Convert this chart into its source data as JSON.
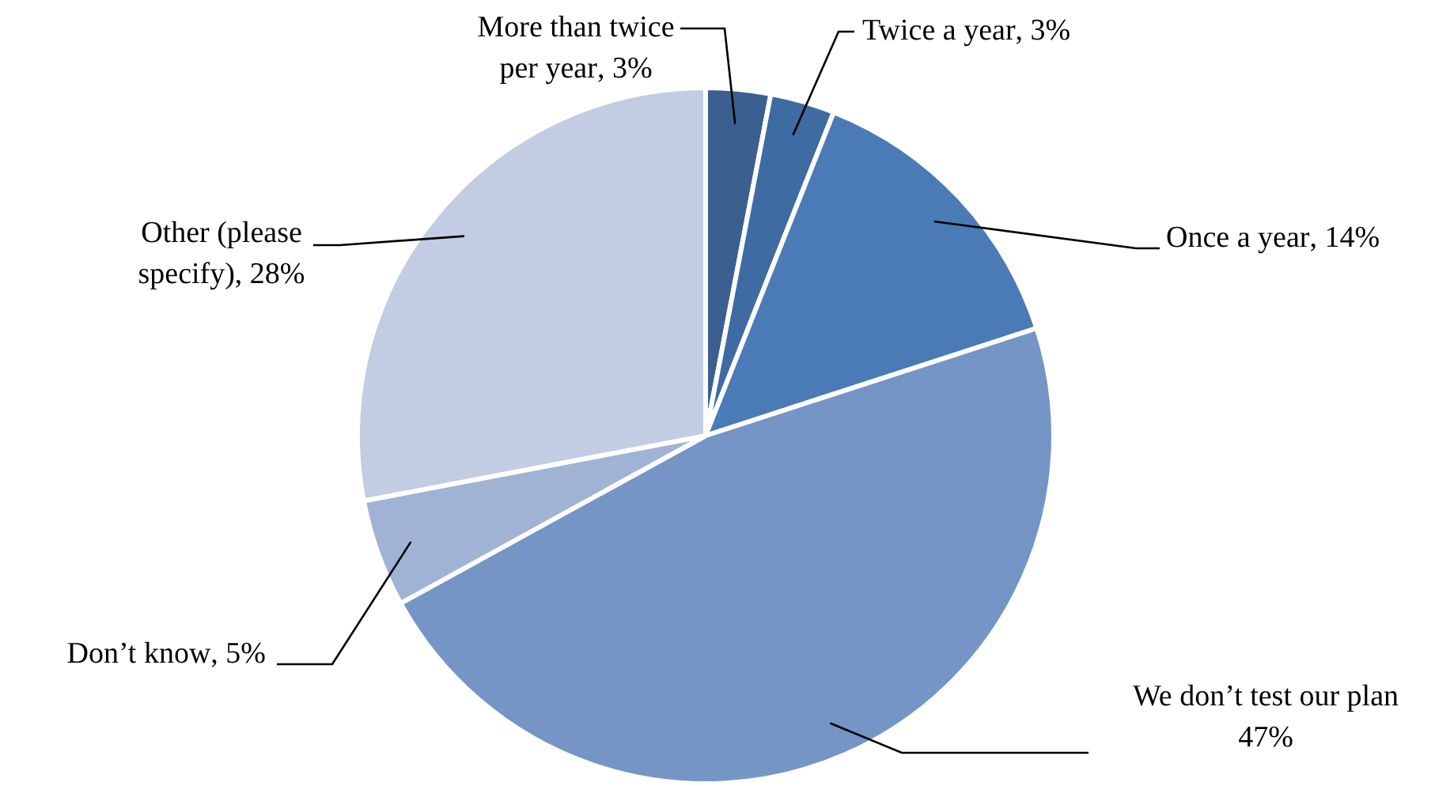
{
  "chart_data": {
    "type": "pie",
    "categories": [
      "More than twice per year",
      "Twice a year",
      "Once a year",
      "We don’t test our plan",
      "Don’t know",
      "Other (please specify)"
    ],
    "values": [
      3,
      3,
      14,
      47,
      5,
      28
    ],
    "colors": [
      "#3b5f8f",
      "#3f6ba3",
      "#4a7bb6",
      "#7595c6",
      "#a1b3d4",
      "#c2cce2"
    ],
    "value_labels": [
      ", 3%",
      ", 3%",
      ", 14%",
      "47%",
      ", 5%",
      ", 28%"
    ],
    "legend": false
  }
}
